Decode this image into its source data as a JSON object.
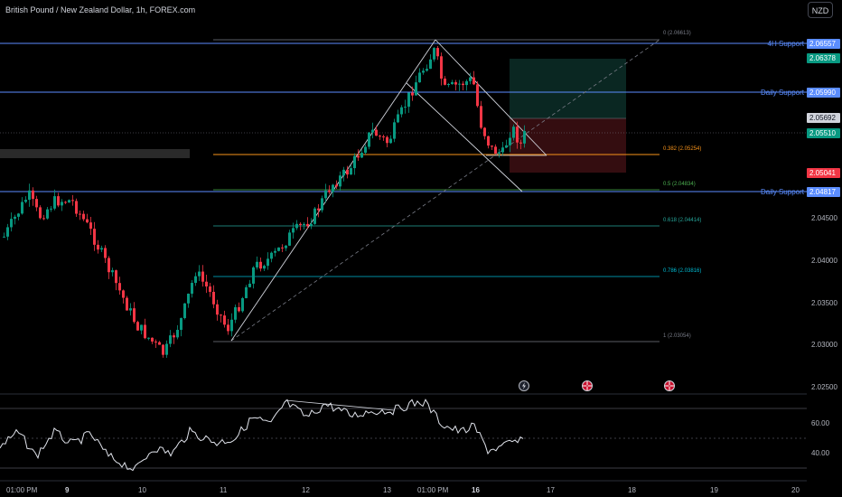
{
  "header": {
    "title": "British Pound / New Zealand Dollar, 1h, FOREX.com",
    "currency": "NZD"
  },
  "colors": {
    "up": "#089981",
    "down": "#f23645",
    "support": "#5b8dff",
    "fib_gray": "#787b86",
    "fib_orange": "#f7931a",
    "fib_green": "#4caf50",
    "fib_teal": "#26a69a",
    "fib_cyan": "#00bcd4"
  },
  "price_axis": [
    "2.04500",
    "2.04000",
    "2.03500",
    "2.03000",
    "2.02500"
  ],
  "time_axis": [
    "01:00 PM",
    "9",
    "10",
    "11",
    "12",
    "13",
    "01:00 PM",
    "16",
    "17",
    "18",
    "19",
    "20"
  ],
  "levels": [
    {
      "label": "4H Support",
      "price": "2.06557"
    },
    {
      "label": "Daily Support",
      "price": "2.05990"
    },
    {
      "label": "Daily Support",
      "price": "2.04817"
    }
  ],
  "tags": {
    "target": "2.06378",
    "current_gray": "2.05692",
    "last": "2.05510",
    "stop": "2.05041"
  },
  "fib_labels": [
    "0 (2.06613)",
    "0.382 (2.05254)",
    "0.5 (2.04834)",
    "0.618 (2.04414)",
    "0.786 (2.03816)",
    "1 (2.03054)"
  ],
  "rsi_axis": [
    "60.00",
    "40.00"
  ]
}
